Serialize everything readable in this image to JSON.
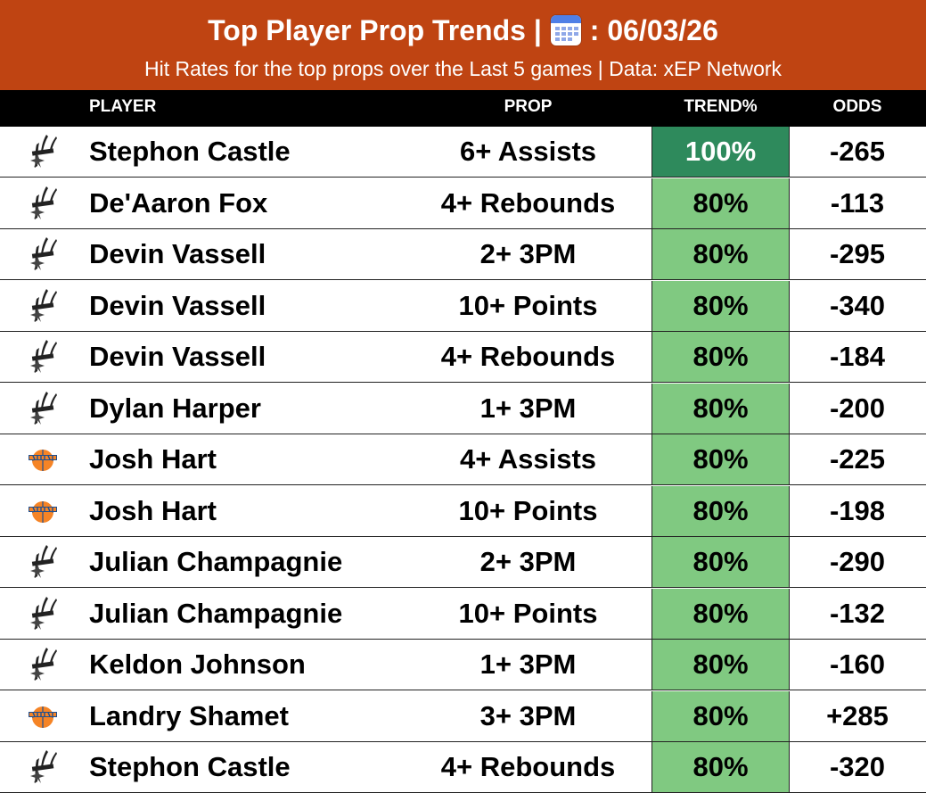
{
  "header": {
    "title_prefix": "Top Player Prop Trends |",
    "title_date": ": 06/03/26",
    "calendar_icon": "calendar-icon",
    "subtitle": "Hit Rates for the top props over the Last 5 games | Data: xEP Network",
    "background_color": "#bf4412"
  },
  "columns": {
    "player": "PLAYER",
    "prop": "PROP",
    "trend": "TREND%",
    "odds": "ODDS"
  },
  "colors": {
    "trend_100": "#2e8a5c",
    "trend_80": "#80c981"
  },
  "rows": [
    {
      "team_icon": "spurs-logo-icon",
      "player": "Stephon Castle",
      "prop": "6+ Assists",
      "trend": "100%",
      "trend_value": 100,
      "odds": "-265"
    },
    {
      "team_icon": "spurs-logo-icon",
      "player": "De'Aaron Fox",
      "prop": "4+ Rebounds",
      "trend": "80%",
      "trend_value": 80,
      "odds": "-113"
    },
    {
      "team_icon": "spurs-logo-icon",
      "player": "Devin Vassell",
      "prop": "2+ 3PM",
      "trend": "80%",
      "trend_value": 80,
      "odds": "-295"
    },
    {
      "team_icon": "spurs-logo-icon",
      "player": "Devin Vassell",
      "prop": "10+ Points",
      "trend": "80%",
      "trend_value": 80,
      "odds": "-340"
    },
    {
      "team_icon": "spurs-logo-icon",
      "player": "Devin Vassell",
      "prop": "4+ Rebounds",
      "trend": "80%",
      "trend_value": 80,
      "odds": "-184"
    },
    {
      "team_icon": "spurs-logo-icon",
      "player": "Dylan Harper",
      "prop": "1+ 3PM",
      "trend": "80%",
      "trend_value": 80,
      "odds": "-200"
    },
    {
      "team_icon": "knicks-logo-icon",
      "player": "Josh Hart",
      "prop": "4+ Assists",
      "trend": "80%",
      "trend_value": 80,
      "odds": "-225"
    },
    {
      "team_icon": "knicks-logo-icon",
      "player": "Josh Hart",
      "prop": "10+ Points",
      "trend": "80%",
      "trend_value": 80,
      "odds": "-198"
    },
    {
      "team_icon": "spurs-logo-icon",
      "player": "Julian Champagnie",
      "prop": "2+ 3PM",
      "trend": "80%",
      "trend_value": 80,
      "odds": "-290"
    },
    {
      "team_icon": "spurs-logo-icon",
      "player": "Julian Champagnie",
      "prop": "10+ Points",
      "trend": "80%",
      "trend_value": 80,
      "odds": "-132"
    },
    {
      "team_icon": "spurs-logo-icon",
      "player": "Keldon Johnson",
      "prop": "1+ 3PM",
      "trend": "80%",
      "trend_value": 80,
      "odds": "-160"
    },
    {
      "team_icon": "knicks-logo-icon",
      "player": "Landry Shamet",
      "prop": "3+ 3PM",
      "trend": "80%",
      "trend_value": 80,
      "odds": "+285"
    },
    {
      "team_icon": "spurs-logo-icon",
      "player": "Stephon Castle",
      "prop": "4+ Rebounds",
      "trend": "80%",
      "trend_value": 80,
      "odds": "-320"
    }
  ]
}
